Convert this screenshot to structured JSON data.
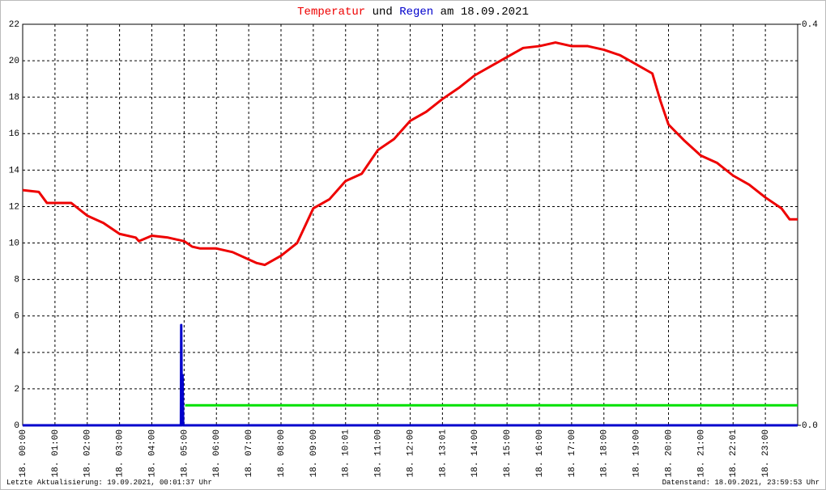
{
  "chart_data": {
    "type": "line",
    "title_joiner": "und",
    "title_suffix": "am 18.09.2021",
    "footer_left": "Letzte Aktualisierung: 19.09.2021, 00:01:37 Uhr",
    "footer_right": "Datenstand: 18.09.2021, 23:59:53 Uhr",
    "xlim": [
      0,
      24
    ],
    "xticks": [
      {
        "value": 0,
        "label": "18. 00:00"
      },
      {
        "value": 1,
        "label": "18. 01:00"
      },
      {
        "value": 2,
        "label": "18. 02:00"
      },
      {
        "value": 3,
        "label": "18. 03:00"
      },
      {
        "value": 4,
        "label": "18. 04:00"
      },
      {
        "value": 5,
        "label": "18. 05:00"
      },
      {
        "value": 6,
        "label": "18. 06:00"
      },
      {
        "value": 7,
        "label": "18. 07:00"
      },
      {
        "value": 8,
        "label": "18. 08:00"
      },
      {
        "value": 9,
        "label": "18. 09:00"
      },
      {
        "value": 10,
        "label": "18. 10:01"
      },
      {
        "value": 11,
        "label": "18. 11:00"
      },
      {
        "value": 12,
        "label": "18. 12:00"
      },
      {
        "value": 13,
        "label": "18. 13:01"
      },
      {
        "value": 14,
        "label": "18. 14:00"
      },
      {
        "value": 15,
        "label": "18. 15:00"
      },
      {
        "value": 16,
        "label": "18. 16:00"
      },
      {
        "value": 17,
        "label": "18. 17:00"
      },
      {
        "value": 18,
        "label": "18. 18:00"
      },
      {
        "value": 19,
        "label": "18. 19:00"
      },
      {
        "value": 20,
        "label": "18. 20:00"
      },
      {
        "value": 21,
        "label": "18. 21:00"
      },
      {
        "value": 22,
        "label": "18. 22:01"
      },
      {
        "value": 23,
        "label": "18. 23:00"
      }
    ],
    "ylim": [
      0,
      22
    ],
    "yticks": [
      0,
      2,
      4,
      6,
      8,
      10,
      12,
      14,
      16,
      18,
      20,
      22
    ],
    "y2lim": [
      0,
      0.4
    ],
    "y2ticks": [
      {
        "value": 0,
        "label": "0.0"
      },
      0.4
    ],
    "grid": true,
    "series": [
      {
        "name": "Temperatur",
        "color": "#ee0000",
        "x": [
          0,
          0.5,
          0.75,
          1,
          1.5,
          2,
          2.5,
          3,
          3.5,
          3.6,
          4,
          4.5,
          5,
          5.25,
          5.5,
          6,
          6.5,
          7,
          7.25,
          7.5,
          8,
          8.5,
          9,
          9.5,
          10,
          10.5,
          11,
          11.5,
          12,
          12.5,
          13,
          13.5,
          14,
          14.5,
          15,
          15.5,
          16,
          16.5,
          17,
          17.5,
          18,
          18.5,
          19,
          19.5,
          19.75,
          20,
          20.5,
          21,
          21.5,
          22,
          22.5,
          23,
          23.5,
          23.75,
          24
        ],
        "values": [
          12.9,
          12.8,
          12.2,
          12.2,
          12.2,
          11.5,
          11.1,
          10.5,
          10.3,
          10.1,
          10.4,
          10.3,
          10.1,
          9.8,
          9.7,
          9.7,
          9.5,
          9.1,
          8.9,
          8.8,
          9.3,
          10.0,
          11.9,
          12.4,
          13.4,
          13.8,
          15.1,
          15.7,
          16.7,
          17.2,
          17.9,
          18.5,
          19.2,
          19.7,
          20.2,
          20.7,
          20.8,
          21.0,
          20.8,
          20.8,
          20.6,
          20.3,
          19.8,
          19.3,
          17.8,
          16.5,
          15.6,
          14.8,
          14.4,
          13.7,
          13.2,
          12.5,
          11.9,
          11.3,
          11.3
        ]
      },
      {
        "name": "Regen",
        "color": "#0000cc",
        "axis": "y2",
        "x": [
          0,
          4.9,
          4.91,
          4.93,
          4.95,
          4.97,
          24
        ],
        "values": [
          0,
          0,
          0.1,
          0,
          0.05,
          0,
          0
        ]
      },
      {
        "color": "#00e000",
        "axis": "y2",
        "x": [
          5.03,
          24
        ],
        "values": [
          0.02,
          0.02
        ]
      }
    ]
  }
}
